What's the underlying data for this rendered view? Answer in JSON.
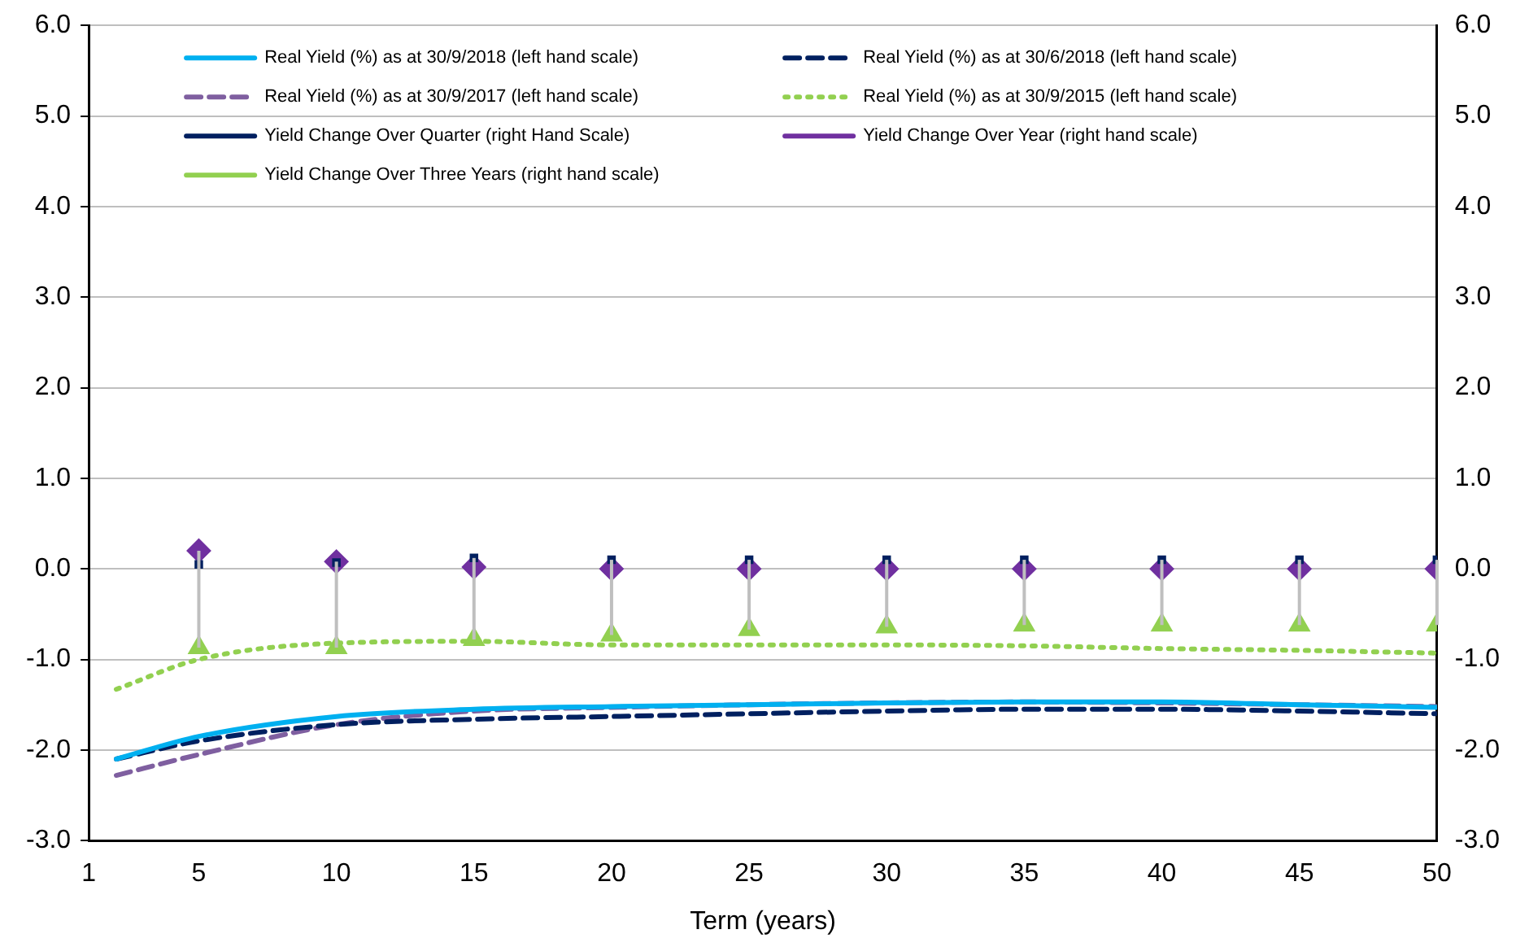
{
  "chart_data": {
    "type": "line",
    "xlabel": "Term (years)",
    "xlim": [
      1,
      50
    ],
    "xticks": [
      1,
      5,
      10,
      15,
      20,
      25,
      30,
      35,
      40,
      45,
      50
    ],
    "ylim": [
      -3,
      6
    ],
    "yticks": [
      {
        "value": -3,
        "label": "-3.0"
      },
      {
        "value": -2,
        "label": "-2.0"
      },
      {
        "value": -1,
        "label": "-1.0"
      },
      {
        "value": 0,
        "label": "0.0"
      },
      {
        "value": 1,
        "label": "1.0"
      },
      {
        "value": 2,
        "label": "2.0"
      },
      {
        "value": 3,
        "label": "3.0"
      },
      {
        "value": 4,
        "label": "4.0"
      },
      {
        "value": 5,
        "label": "5.0"
      },
      {
        "value": 6,
        "label": "6.0"
      }
    ],
    "y2lim": [
      -3,
      6
    ],
    "y2ticks": [
      {
        "value": -3,
        "label": "-3.0"
      },
      {
        "value": -2,
        "label": "-2.0"
      },
      {
        "value": -1,
        "label": "-1.0"
      },
      {
        "value": 0,
        "label": "0.0"
      },
      {
        "value": 1,
        "label": "1.0"
      },
      {
        "value": 2,
        "label": "2.0"
      },
      {
        "value": 3,
        "label": "3.0"
      },
      {
        "value": 4,
        "label": "4.0"
      },
      {
        "value": 5,
        "label": "5.0"
      },
      {
        "value": 6,
        "label": "6.0"
      }
    ],
    "grid": "y",
    "legend": "top",
    "series": [
      {
        "name": "Real Yield (%) as at 30/9/2018 (left hand scale)",
        "color": "#00b0f0",
        "line_style": "solid",
        "marker": "none",
        "x": [
          2,
          5,
          10,
          15,
          20,
          25,
          30,
          35,
          40,
          45,
          50
        ],
        "values": [
          -2.1,
          -1.85,
          -1.63,
          -1.55,
          -1.52,
          -1.5,
          -1.48,
          -1.47,
          -1.47,
          -1.5,
          -1.53
        ]
      },
      {
        "name": "Real Yield (%) as at 30/6/2018 (left hand scale)",
        "color": "#002060",
        "line_style": "dashed",
        "marker": "none",
        "x": [
          2,
          5,
          10,
          15,
          20,
          25,
          30,
          35,
          40,
          45,
          50
        ],
        "values": [
          -2.1,
          -1.9,
          -1.72,
          -1.66,
          -1.63,
          -1.6,
          -1.57,
          -1.55,
          -1.55,
          -1.57,
          -1.6
        ]
      },
      {
        "name": "Real Yield (%) as at 30/9/2017 (left hand scale)",
        "color": "#7f5fa0",
        "line_style": "dashed",
        "marker": "none",
        "x": [
          2,
          5,
          10,
          15,
          20,
          25,
          30,
          35,
          40,
          45,
          50
        ],
        "values": [
          -2.28,
          -2.05,
          -1.72,
          -1.57,
          -1.53,
          -1.5,
          -1.48,
          -1.47,
          -1.48,
          -1.5,
          -1.52
        ]
      },
      {
        "name": "Real Yield (%) as at 30/9/2015 (left hand scale)",
        "color": "#92d050",
        "line_style": "dotted",
        "marker": "none",
        "x": [
          2,
          5,
          10,
          15,
          20,
          25,
          30,
          35,
          40,
          45,
          50
        ],
        "values": [
          -1.33,
          -1.0,
          -0.82,
          -0.8,
          -0.84,
          -0.84,
          -0.84,
          -0.85,
          -0.88,
          -0.9,
          -0.93
        ]
      },
      {
        "name": "Yield Change Over Quarter (right Hand Scale)",
        "type": "scatter",
        "color": "#002060",
        "marker": "square",
        "x": [
          5,
          10,
          15,
          20,
          25,
          30,
          35,
          40,
          45,
          50
        ],
        "values": [
          0.05,
          0.07,
          0.12,
          0.1,
          0.1,
          0.1,
          0.1,
          0.1,
          0.1,
          0.1
        ]
      },
      {
        "name": "Yield Change Over Year (right hand scale)",
        "type": "scatter",
        "color": "#7030a0",
        "marker": "diamond",
        "x": [
          5,
          10,
          15,
          20,
          25,
          30,
          35,
          40,
          45,
          50
        ],
        "values": [
          0.2,
          0.08,
          0.02,
          0,
          0,
          0,
          0,
          0,
          0,
          0
        ]
      },
      {
        "name": "Yield Change Over Three Years (right hand scale)",
        "type": "scatter",
        "color": "#92d050",
        "marker": "triangle",
        "x": [
          5,
          10,
          15,
          20,
          25,
          30,
          35,
          40,
          45,
          50
        ],
        "values": [
          -0.87,
          -0.87,
          -0.78,
          -0.73,
          -0.67,
          -0.64,
          -0.62,
          -0.62,
          -0.62,
          -0.62
        ],
        "errors": [
          [
            -0.87,
            0.2
          ],
          [
            -0.87,
            0.08
          ],
          [
            -0.78,
            0.12
          ],
          [
            -0.73,
            0.1
          ],
          [
            -0.67,
            0.1
          ],
          [
            -0.64,
            0.1
          ],
          [
            -0.62,
            0.1
          ],
          [
            -0.62,
            0.1
          ],
          [
            -0.62,
            0.1
          ],
          [
            -0.62,
            0.1
          ]
        ]
      }
    ]
  }
}
